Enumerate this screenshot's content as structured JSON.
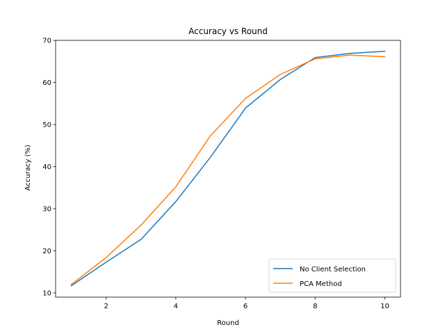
{
  "chart_data": {
    "type": "line",
    "title": "Accuracy vs Round",
    "xlabel": "Round",
    "ylabel": "Accuracy (%)",
    "x": [
      1,
      2,
      3,
      4,
      5,
      6,
      7,
      8,
      9,
      10
    ],
    "xlim": [
      0.55,
      10.45
    ],
    "ylim": [
      9.0,
      70.0
    ],
    "xticks": [
      2,
      4,
      6,
      8,
      10
    ],
    "yticks": [
      10,
      20,
      30,
      40,
      50,
      60,
      70
    ],
    "grid": false,
    "legend_position": "lower right",
    "series": [
      {
        "name": "No Client Selection",
        "color": "#1f77b4",
        "values": [
          11.7,
          17.3,
          22.7,
          31.7,
          42.3,
          53.9,
          60.7,
          65.9,
          66.9,
          67.4
        ]
      },
      {
        "name": "PCA Method",
        "color": "#ff7f0e",
        "values": [
          12.0,
          18.4,
          26.1,
          35.2,
          47.4,
          56.2,
          61.9,
          65.6,
          66.5,
          66.1
        ]
      }
    ]
  }
}
